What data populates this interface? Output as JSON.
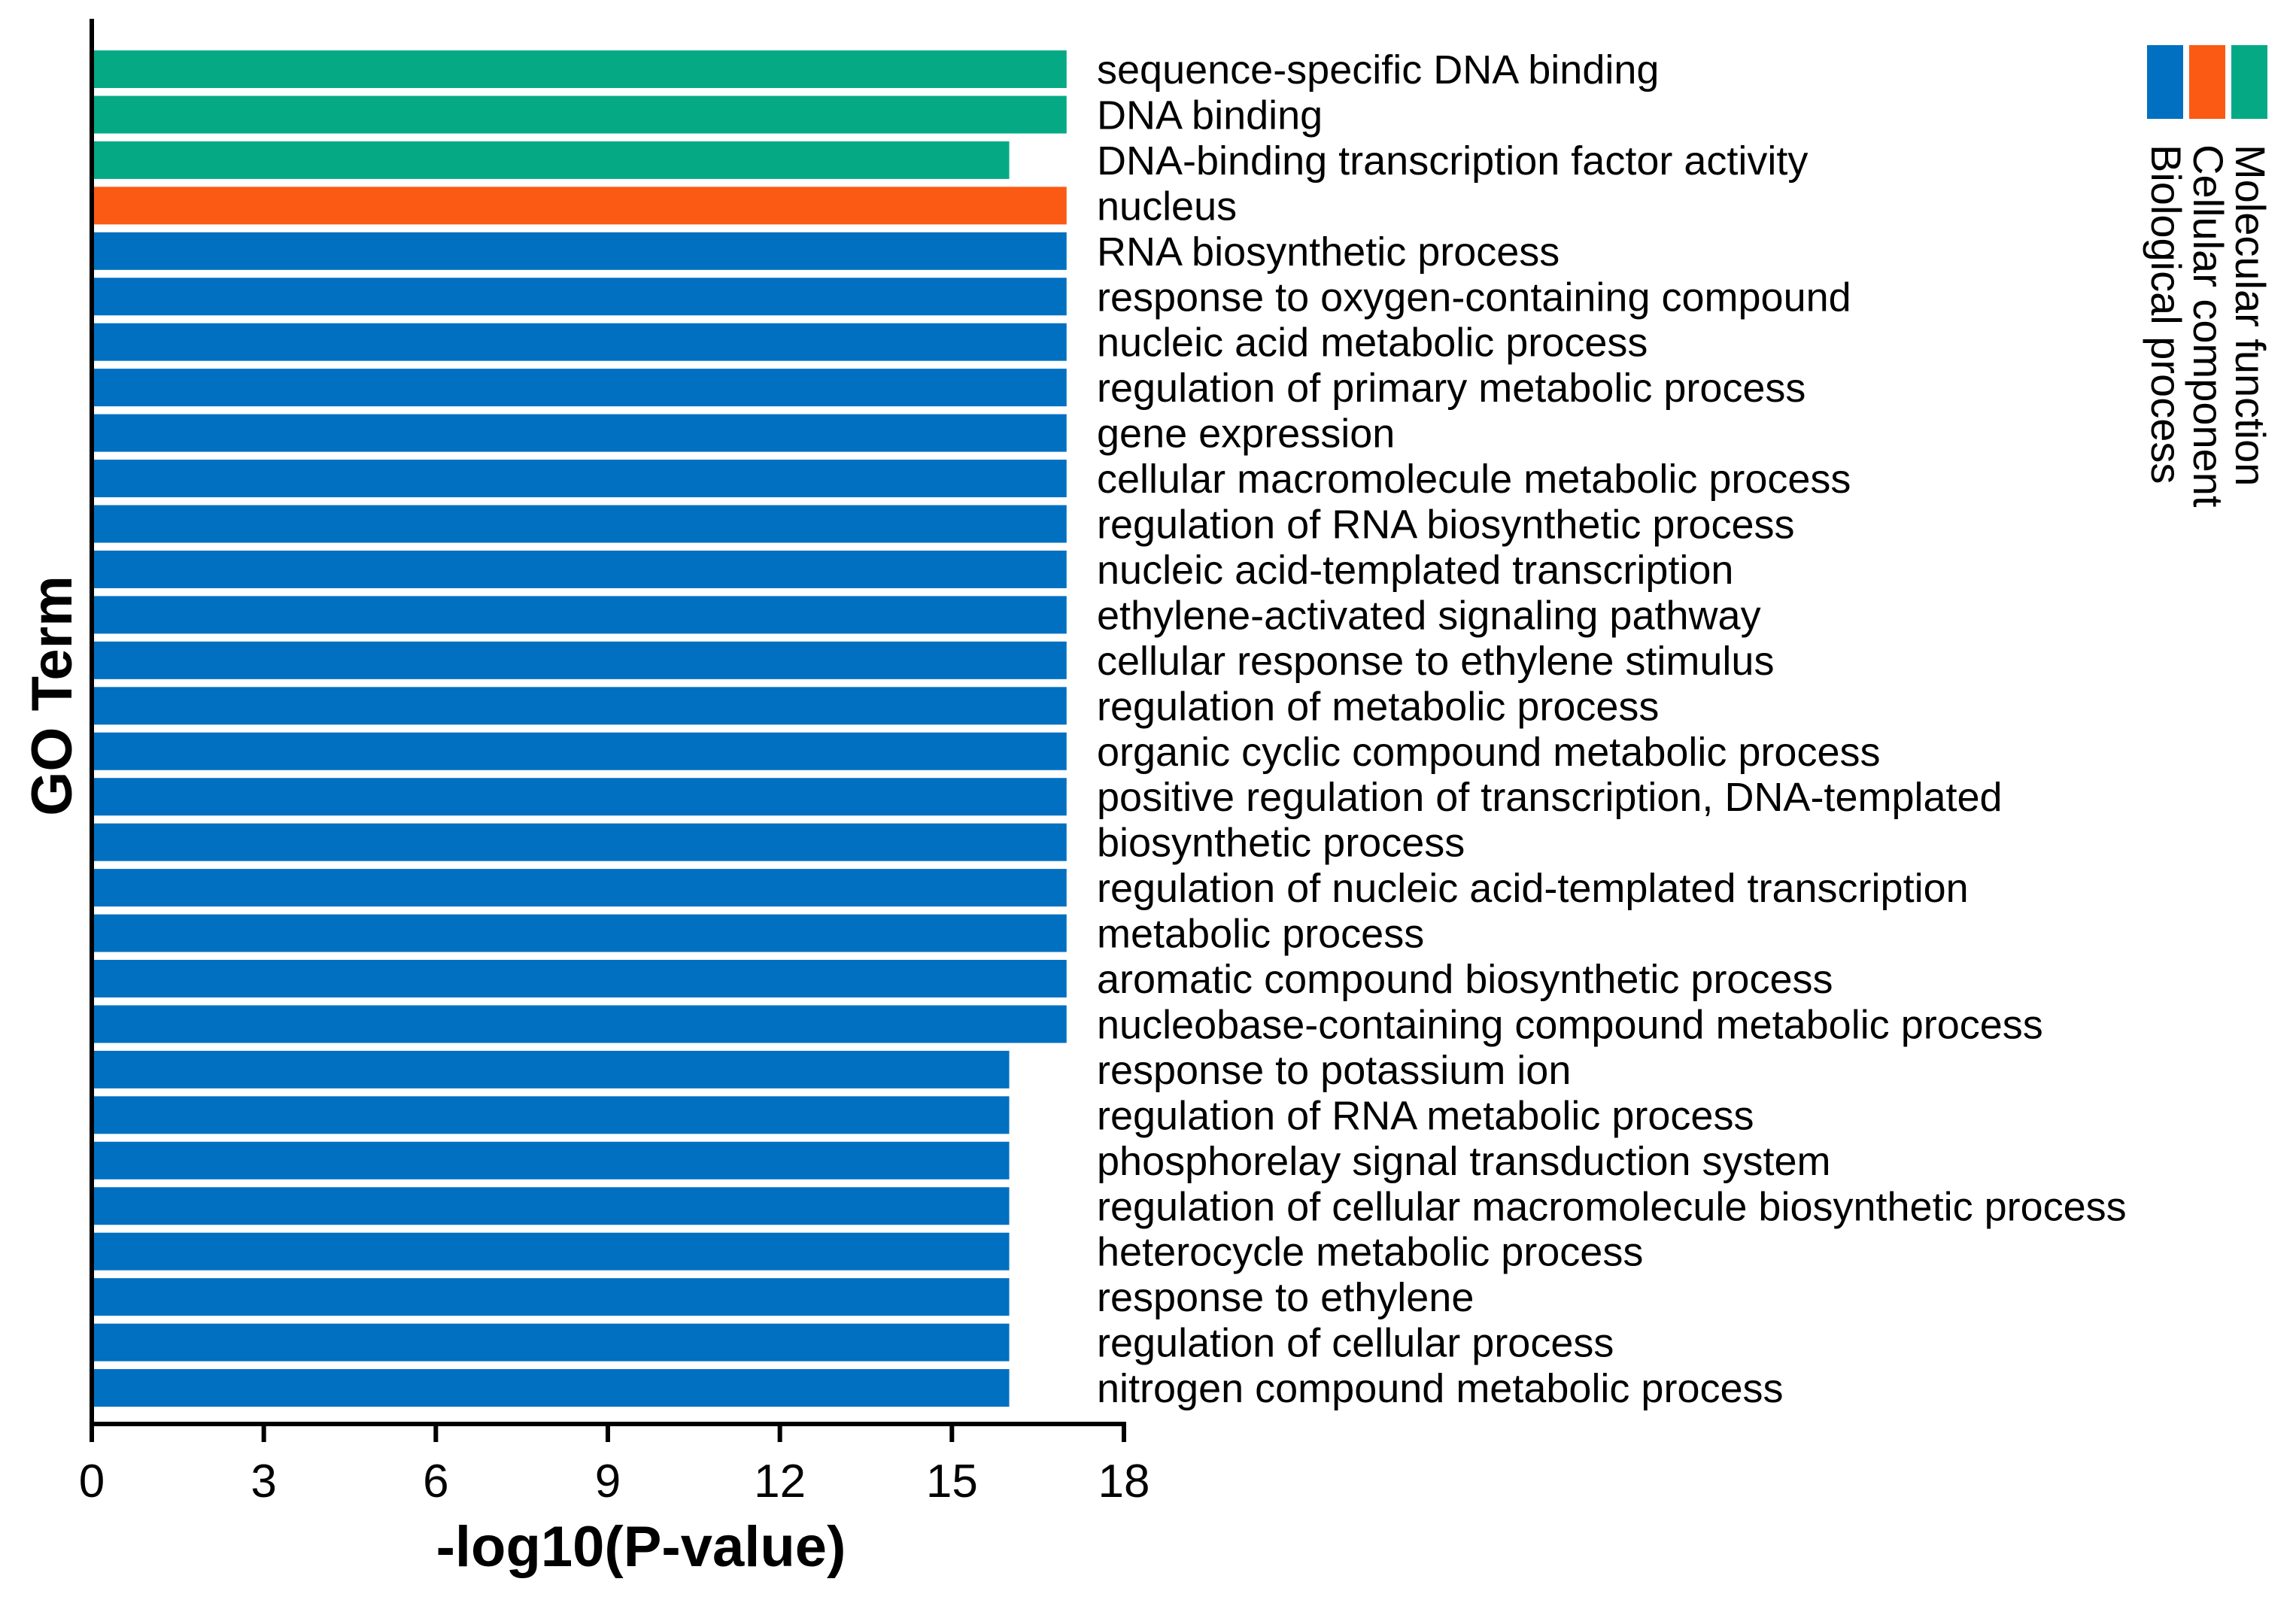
{
  "chart_data": {
    "type": "bar",
    "orientation": "horizontal",
    "xlabel": "-log10(P-value)",
    "ylabel": "GO Term",
    "xlim": [
      0,
      18
    ],
    "xticks": [
      "0",
      "3",
      "6",
      "9",
      "12",
      "15",
      "18"
    ],
    "colors": {
      "Molecular function": "#05AA85",
      "Cellular component": "#FA5A14",
      "Biological process": "#0270C1"
    },
    "legend": {
      "position": "top-right",
      "entries": [
        "Molecular function",
        "Cellular component",
        "Biological process"
      ]
    },
    "bars": [
      {
        "term": "sequence-specific DNA binding",
        "value": 17,
        "category": "Molecular function"
      },
      {
        "term": "DNA binding",
        "value": 17,
        "category": "Molecular function"
      },
      {
        "term": "DNA-binding transcription factor activity",
        "value": 16,
        "category": "Molecular function"
      },
      {
        "term": "nucleus",
        "value": 17,
        "category": "Cellular component"
      },
      {
        "term": "RNA biosynthetic process",
        "value": 17,
        "category": "Biological process"
      },
      {
        "term": "response to oxygen-containing compound",
        "value": 17,
        "category": "Biological process"
      },
      {
        "term": "nucleic acid metabolic process",
        "value": 17,
        "category": "Biological process"
      },
      {
        "term": "regulation of primary metabolic process",
        "value": 17,
        "category": "Biological process"
      },
      {
        "term": "gene expression",
        "value": 17,
        "category": "Biological process"
      },
      {
        "term": "cellular macromolecule metabolic process",
        "value": 17,
        "category": "Biological process"
      },
      {
        "term": "regulation of RNA biosynthetic process",
        "value": 17,
        "category": "Biological process"
      },
      {
        "term": "nucleic acid-templated transcription",
        "value": 17,
        "category": "Biological process"
      },
      {
        "term": "ethylene-activated signaling pathway",
        "value": 17,
        "category": "Biological process"
      },
      {
        "term": "cellular response to ethylene stimulus",
        "value": 17,
        "category": "Biological process"
      },
      {
        "term": "regulation of metabolic process",
        "value": 17,
        "category": "Biological process"
      },
      {
        "term": "organic cyclic compound metabolic process",
        "value": 17,
        "category": "Biological process"
      },
      {
        "term": "positive regulation of transcription, DNA-templated",
        "value": 17,
        "category": "Biological process"
      },
      {
        "term": "biosynthetic process",
        "value": 17,
        "category": "Biological process"
      },
      {
        "term": "regulation of nucleic acid-templated transcription",
        "value": 17,
        "category": "Biological process"
      },
      {
        "term": "metabolic process",
        "value": 17,
        "category": "Biological process"
      },
      {
        "term": "aromatic compound biosynthetic process",
        "value": 17,
        "category": "Biological process"
      },
      {
        "term": "nucleobase-containing compound metabolic process",
        "value": 17,
        "category": "Biological process"
      },
      {
        "term": "response to potassium ion",
        "value": 16,
        "category": "Biological process"
      },
      {
        "term": "regulation of RNA metabolic process",
        "value": 16,
        "category": "Biological process"
      },
      {
        "term": "phosphorelay signal transduction system",
        "value": 16,
        "category": "Biological process"
      },
      {
        "term": "regulation of cellular macromolecule biosynthetic process",
        "value": 16,
        "category": "Biological process"
      },
      {
        "term": "heterocycle metabolic process",
        "value": 16,
        "category": "Biological process"
      },
      {
        "term": "response to ethylene",
        "value": 16,
        "category": "Biological process"
      },
      {
        "term": "regulation of cellular process",
        "value": 16,
        "category": "Biological process"
      },
      {
        "term": "nitrogen compound metabolic process",
        "value": 16,
        "category": "Biological process"
      }
    ]
  }
}
